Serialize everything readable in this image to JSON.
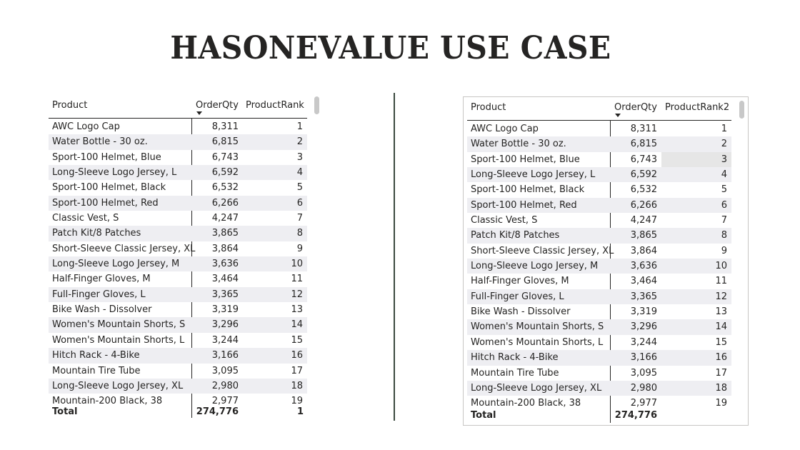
{
  "page": {
    "title": "HASONEVALUE USE CASE"
  },
  "table1": {
    "headers": {
      "product": "Product",
      "orderqty": "OrderQty",
      "rank": "ProductRank"
    },
    "rows": [
      {
        "product": "AWC Logo Cap",
        "qty": "8,311",
        "rank": "1"
      },
      {
        "product": "Water Bottle - 30 oz.",
        "qty": "6,815",
        "rank": "2"
      },
      {
        "product": "Sport-100 Helmet, Blue",
        "qty": "6,743",
        "rank": "3"
      },
      {
        "product": "Long-Sleeve Logo Jersey, L",
        "qty": "6,592",
        "rank": "4"
      },
      {
        "product": "Sport-100 Helmet, Black",
        "qty": "6,532",
        "rank": "5"
      },
      {
        "product": "Sport-100 Helmet, Red",
        "qty": "6,266",
        "rank": "6"
      },
      {
        "product": "Classic Vest, S",
        "qty": "4,247",
        "rank": "7"
      },
      {
        "product": "Patch Kit/8 Patches",
        "qty": "3,865",
        "rank": "8"
      },
      {
        "product": "Short-Sleeve Classic Jersey, XL",
        "qty": "3,864",
        "rank": "9"
      },
      {
        "product": "Long-Sleeve Logo Jersey, M",
        "qty": "3,636",
        "rank": "10"
      },
      {
        "product": "Half-Finger Gloves, M",
        "qty": "3,464",
        "rank": "11"
      },
      {
        "product": "Full-Finger Gloves, L",
        "qty": "3,365",
        "rank": "12"
      },
      {
        "product": "Bike Wash - Dissolver",
        "qty": "3,319",
        "rank": "13"
      },
      {
        "product": "Women's Mountain Shorts, S",
        "qty": "3,296",
        "rank": "14"
      },
      {
        "product": "Women's Mountain Shorts, L",
        "qty": "3,244",
        "rank": "15"
      },
      {
        "product": "Hitch Rack - 4-Bike",
        "qty": "3,166",
        "rank": "16"
      },
      {
        "product": "Mountain Tire Tube",
        "qty": "3,095",
        "rank": "17"
      },
      {
        "product": "Long-Sleeve Logo Jersey, XL",
        "qty": "2,980",
        "rank": "18"
      },
      {
        "product": "Mountain-200 Black, 38",
        "qty": "2,977",
        "rank": "19"
      }
    ],
    "total": {
      "label": "Total",
      "qty": "274,776",
      "rank": "1"
    }
  },
  "table2": {
    "headers": {
      "product": "Product",
      "orderqty": "OrderQty",
      "rank": "ProductRank2"
    },
    "rows": [
      {
        "product": "AWC Logo Cap",
        "qty": "8,311",
        "rank": "1"
      },
      {
        "product": "Water Bottle - 30 oz.",
        "qty": "6,815",
        "rank": "2"
      },
      {
        "product": "Sport-100 Helmet, Blue",
        "qty": "6,743",
        "rank": "3"
      },
      {
        "product": "Long-Sleeve Logo Jersey, L",
        "qty": "6,592",
        "rank": "4"
      },
      {
        "product": "Sport-100 Helmet, Black",
        "qty": "6,532",
        "rank": "5"
      },
      {
        "product": "Sport-100 Helmet, Red",
        "qty": "6,266",
        "rank": "6"
      },
      {
        "product": "Classic Vest, S",
        "qty": "4,247",
        "rank": "7"
      },
      {
        "product": "Patch Kit/8 Patches",
        "qty": "3,865",
        "rank": "8"
      },
      {
        "product": "Short-Sleeve Classic Jersey, XL",
        "qty": "3,864",
        "rank": "9"
      },
      {
        "product": "Long-Sleeve Logo Jersey, M",
        "qty": "3,636",
        "rank": "10"
      },
      {
        "product": "Half-Finger Gloves, M",
        "qty": "3,464",
        "rank": "11"
      },
      {
        "product": "Full-Finger Gloves, L",
        "qty": "3,365",
        "rank": "12"
      },
      {
        "product": "Bike Wash - Dissolver",
        "qty": "3,319",
        "rank": "13"
      },
      {
        "product": "Women's Mountain Shorts, S",
        "qty": "3,296",
        "rank": "14"
      },
      {
        "product": "Women's Mountain Shorts, L",
        "qty": "3,244",
        "rank": "15"
      },
      {
        "product": "Hitch Rack - 4-Bike",
        "qty": "3,166",
        "rank": "16"
      },
      {
        "product": "Mountain Tire Tube",
        "qty": "3,095",
        "rank": "17"
      },
      {
        "product": "Long-Sleeve Logo Jersey, XL",
        "qty": "2,980",
        "rank": "18"
      },
      {
        "product": "Mountain-200 Black, 38",
        "qty": "2,977",
        "rank": "19"
      }
    ],
    "total": {
      "label": "Total",
      "qty": "274,776",
      "rank": ""
    }
  },
  "colors": {
    "row_alt": "#eeeef2",
    "text": "#252423",
    "divider": "#3c4a40",
    "frame": "#c8c6c4"
  }
}
